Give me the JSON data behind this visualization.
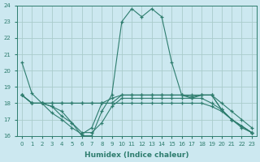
{
  "xlabel": "Humidex (Indice chaleur)",
  "bg_color": "#cce8f0",
  "grid_color": "#aacccc",
  "line_color": "#2e7d6e",
  "xlim": [
    -0.5,
    23.5
  ],
  "ylim": [
    16,
    24
  ],
  "xticks": [
    0,
    1,
    2,
    3,
    4,
    5,
    6,
    7,
    8,
    9,
    10,
    11,
    12,
    13,
    14,
    15,
    16,
    17,
    18,
    19,
    20,
    21,
    22,
    23
  ],
  "yticks": [
    16,
    17,
    18,
    19,
    20,
    21,
    22,
    23,
    24
  ],
  "series": [
    [
      20.5,
      18.6,
      18.0,
      17.8,
      17.5,
      16.8,
      16.0,
      16.0,
      17.5,
      18.5,
      23.0,
      23.8,
      23.3,
      23.8,
      23.3,
      20.5,
      18.5,
      18.4,
      18.5,
      18.5,
      17.6,
      17.0,
      16.6,
      16.2
    ],
    [
      18.5,
      18.0,
      18.0,
      17.8,
      17.2,
      16.8,
      16.2,
      16.2,
      16.8,
      17.8,
      18.3,
      18.3,
      18.3,
      18.3,
      18.3,
      18.3,
      18.3,
      18.3,
      18.3,
      18.0,
      17.6,
      17.0,
      16.5,
      16.2
    ],
    [
      18.5,
      18.0,
      18.0,
      17.4,
      17.0,
      16.5,
      16.1,
      16.5,
      18.0,
      18.3,
      18.5,
      18.5,
      18.5,
      18.5,
      18.5,
      18.5,
      18.5,
      18.3,
      18.5,
      18.5,
      18.0,
      17.5,
      17.0,
      16.5
    ],
    [
      18.5,
      18.0,
      18.0,
      18.0,
      18.0,
      18.0,
      18.0,
      18.0,
      18.0,
      18.0,
      18.5,
      18.5,
      18.5,
      18.5,
      18.5,
      18.5,
      18.5,
      18.5,
      18.5,
      18.5,
      17.6,
      17.0,
      16.6,
      16.2
    ],
    [
      18.5,
      18.0,
      18.0,
      18.0,
      18.0,
      18.0,
      18.0,
      18.0,
      18.0,
      18.0,
      18.0,
      18.0,
      18.0,
      18.0,
      18.0,
      18.0,
      18.0,
      18.0,
      18.0,
      17.8,
      17.5,
      17.0,
      16.6,
      16.2
    ]
  ]
}
